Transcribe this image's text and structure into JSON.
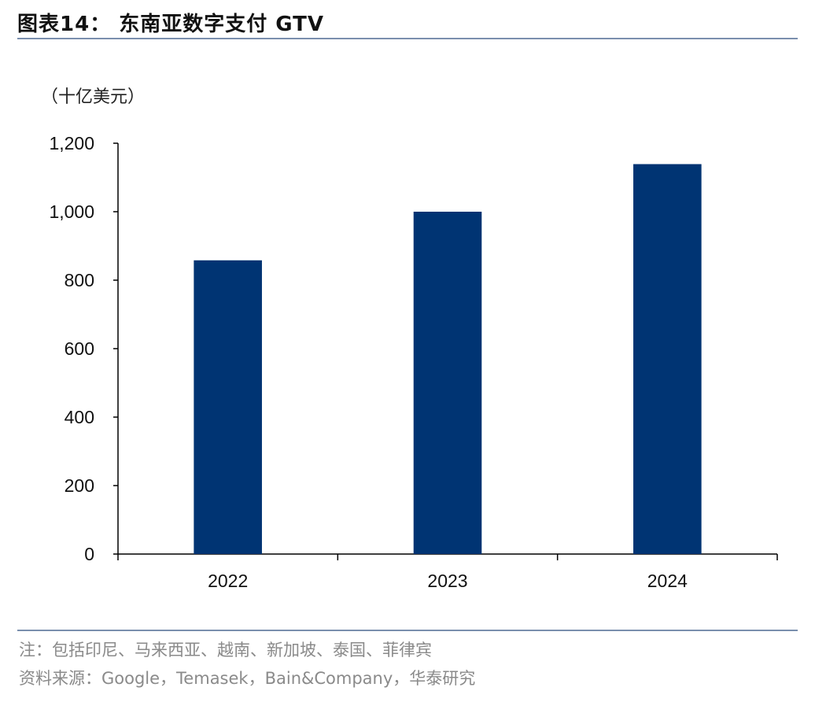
{
  "header": {
    "title": "图表14：  东南亚数字支付 GTV"
  },
  "footer": {
    "note": "注：包括印尼、马来西亚、越南、新加坡、泰国、菲律宾",
    "source": "资料来源：Google，Temasek，Bain&Company，华泰研究"
  },
  "chart_data": {
    "type": "bar",
    "title": "东南亚数字支付 GTV",
    "unit_label": "（十亿美元）",
    "categories": [
      "2022",
      "2023",
      "2024"
    ],
    "values": [
      858,
      1000,
      1139
    ],
    "ylim": [
      0,
      1200
    ],
    "yticks": [
      0,
      200,
      400,
      600,
      800,
      1000,
      1200
    ],
    "ytick_labels": [
      "0",
      "200",
      "400",
      "600",
      "800",
      "1,000",
      "1,200"
    ],
    "grid": false,
    "bar_color": "#003473",
    "axis_color": "#000000"
  }
}
